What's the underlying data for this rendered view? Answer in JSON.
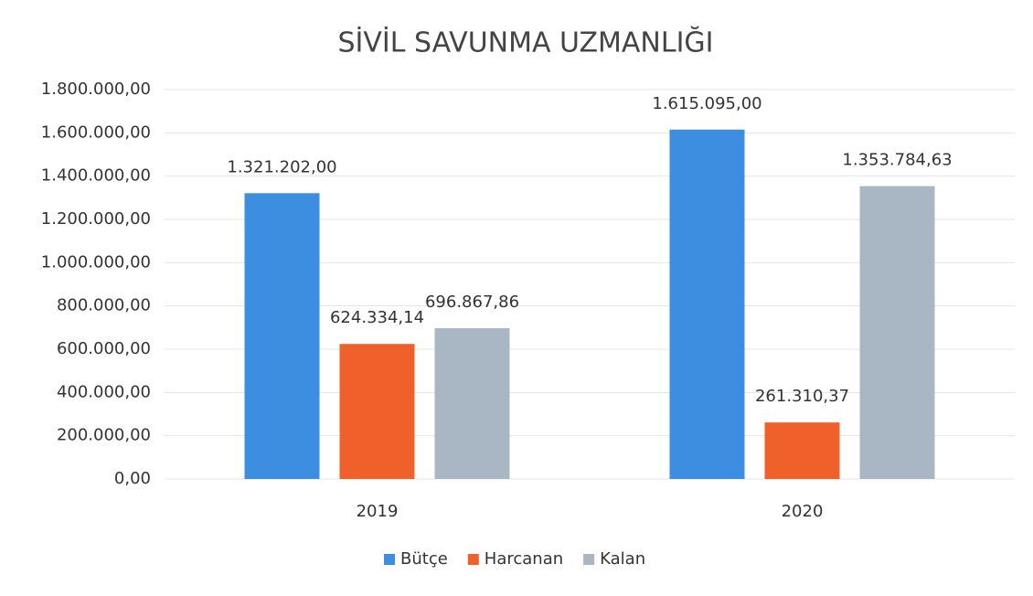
{
  "chart_data": {
    "type": "bar",
    "title": "SİVİL SAVUNMA UZMANLIĞI",
    "categories": [
      "2019",
      "2020"
    ],
    "series": [
      {
        "name": "Bütçe",
        "color": "#3d8ee0",
        "values": [
          1321202.0,
          1615095.0
        ],
        "value_labels": [
          "1.321.202,00",
          "1.615.095,00"
        ]
      },
      {
        "name": "Harcanan",
        "color": "#f0602b",
        "values": [
          624334.14,
          261310.37
        ],
        "value_labels": [
          "624.334,14",
          "261.310,37"
        ]
      },
      {
        "name": "Kalan",
        "color": "#a8b7c3",
        "values": [
          696867.86,
          1353784.63
        ],
        "value_labels": [
          "696.867,86",
          "1.353.784,63"
        ]
      }
    ],
    "ylim": [
      0,
      1800000
    ],
    "yticks": [
      {
        "value": 0,
        "label": "0,00"
      },
      {
        "value": 200000,
        "label": "200.000,00"
      },
      {
        "value": 400000,
        "label": "400.000,00"
      },
      {
        "value": 600000,
        "label": "600.000,00"
      },
      {
        "value": 800000,
        "label": "800.000,00"
      },
      {
        "value": 1000000,
        "label": "1.000.000,00"
      },
      {
        "value": 1200000,
        "label": "1.200.000,00"
      },
      {
        "value": 1400000,
        "label": "1.400.000,00"
      },
      {
        "value": 1600000,
        "label": "1.600.000,00"
      },
      {
        "value": 1800000,
        "label": "1.800.000,00"
      }
    ],
    "grid": true,
    "legend": "bottom"
  }
}
